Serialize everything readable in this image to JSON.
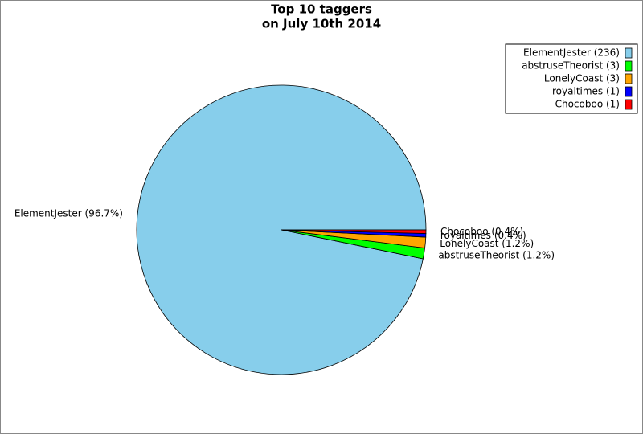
{
  "chart_data": {
    "type": "pie",
    "title": "Top 10 taggers",
    "subtitle": "on July 10th 2014",
    "categories": [
      "ElementJester",
      "abstruseTheorist",
      "LonelyCoast",
      "royaltimes",
      "Chocoboo"
    ],
    "values": [
      96.7,
      1.2,
      1.2,
      0.4,
      0.4
    ],
    "value_labels": [
      "ElementJester (96.7%)",
      "abstruseTheorist (1.2%)",
      "LonelyCoast (1.2%)",
      "royaltimes (0.4%)",
      "Chocoboo (0.4%)"
    ],
    "legend_labels": [
      "ElementJester (236)",
      "abstruseTheorist (3)",
      "LonelyCoast (3)",
      "royaltimes (1)",
      "Chocoboo (1)"
    ],
    "colors": [
      "#87ceeb",
      "#00ff00",
      "#ffa500",
      "#0000ff",
      "#ff0000"
    ],
    "legend": "upper right"
  }
}
